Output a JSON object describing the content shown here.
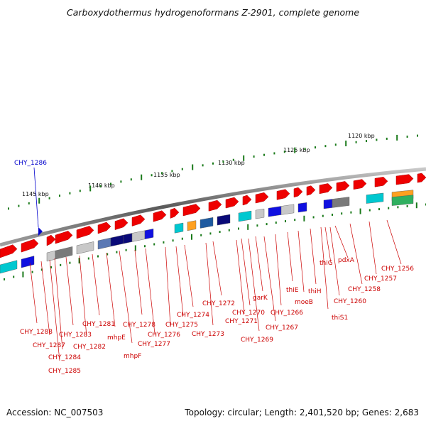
{
  "header": {
    "title": "Carboxydothermus hydrogenoformans Z-2901, complete genome"
  },
  "footer": {
    "accession": "Accession: NC_007503",
    "topology": "Topology: circular; Length: 2,401,520 bp; Genes: 2,683"
  },
  "ruler": {
    "labels": [
      "1120 kbp",
      "1125 kbp",
      "1130 kbp",
      "1135 kbp",
      "1140 kbp",
      "1145 kbp"
    ]
  },
  "highlight": {
    "label": "CHY_1286"
  },
  "gene_labels": [
    "CHY_1256",
    "CHY_1257",
    "CHY_1258",
    "pdxA",
    "thiG",
    "CHY_1260",
    "thiS1",
    "thiH",
    "moeB",
    "thiE",
    "CHY_1266",
    "garK",
    "CHY_1267",
    "CHY_1270",
    "CHY_1271",
    "CHY_1269",
    "CHY_1272",
    "CHY_1273",
    "CHY_1274",
    "CHY_1275",
    "CHY_1276",
    "CHY_1277",
    "CHY_1278",
    "mhpF",
    "mhpE",
    "CHY_1281",
    "CHY_1282",
    "CHY_1283",
    "CHY_1284",
    "CHY_1285",
    "CHY_1287",
    "CHY_1288"
  ],
  "colors": {
    "gene": "#ee0000",
    "label": "#cc0000",
    "highlight": "#0000cc",
    "backbone": "#808080",
    "tick": "#1a7a1a"
  }
}
